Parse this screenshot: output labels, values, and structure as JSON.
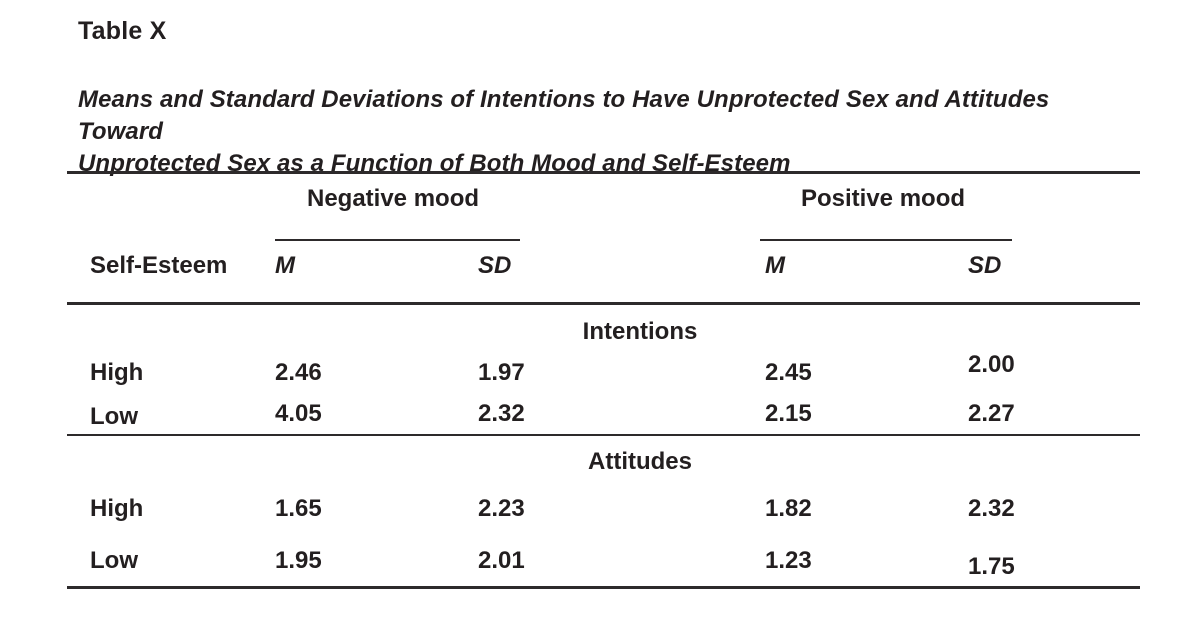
{
  "table_label": "Table X",
  "title": {
    "line1": "Means and Standard Deviations of Intentions to Have Unprotected Sex and Attitudes Toward",
    "line2": "Unprotected Sex as a Function of Both Mood and Self-Esteem"
  },
  "header": {
    "stub": "Self-Esteem",
    "spanners": [
      {
        "label": "Negative mood",
        "sub": [
          "M",
          "SD"
        ]
      },
      {
        "label": "Positive mood",
        "sub": [
          "M",
          "SD"
        ]
      }
    ]
  },
  "sections": [
    {
      "header": "Intentions",
      "rows": [
        {
          "label": "High",
          "values": [
            "2.46",
            "1.97",
            "2.45",
            "2.00"
          ]
        },
        {
          "label": "Low",
          "values": [
            "4.05",
            "2.32",
            "2.15",
            "2.27"
          ]
        }
      ]
    },
    {
      "header": "Attitudes",
      "rows": [
        {
          "label": "High",
          "values": [
            "1.65",
            "2.23",
            "1.82",
            "2.32"
          ]
        },
        {
          "label": "Low",
          "values": [
            "1.95",
            "2.01",
            "1.23",
            "1.75"
          ]
        }
      ]
    }
  ],
  "colors": {
    "text": "#231f20",
    "rule": "#2d2a2b",
    "background": "#ffffff"
  }
}
